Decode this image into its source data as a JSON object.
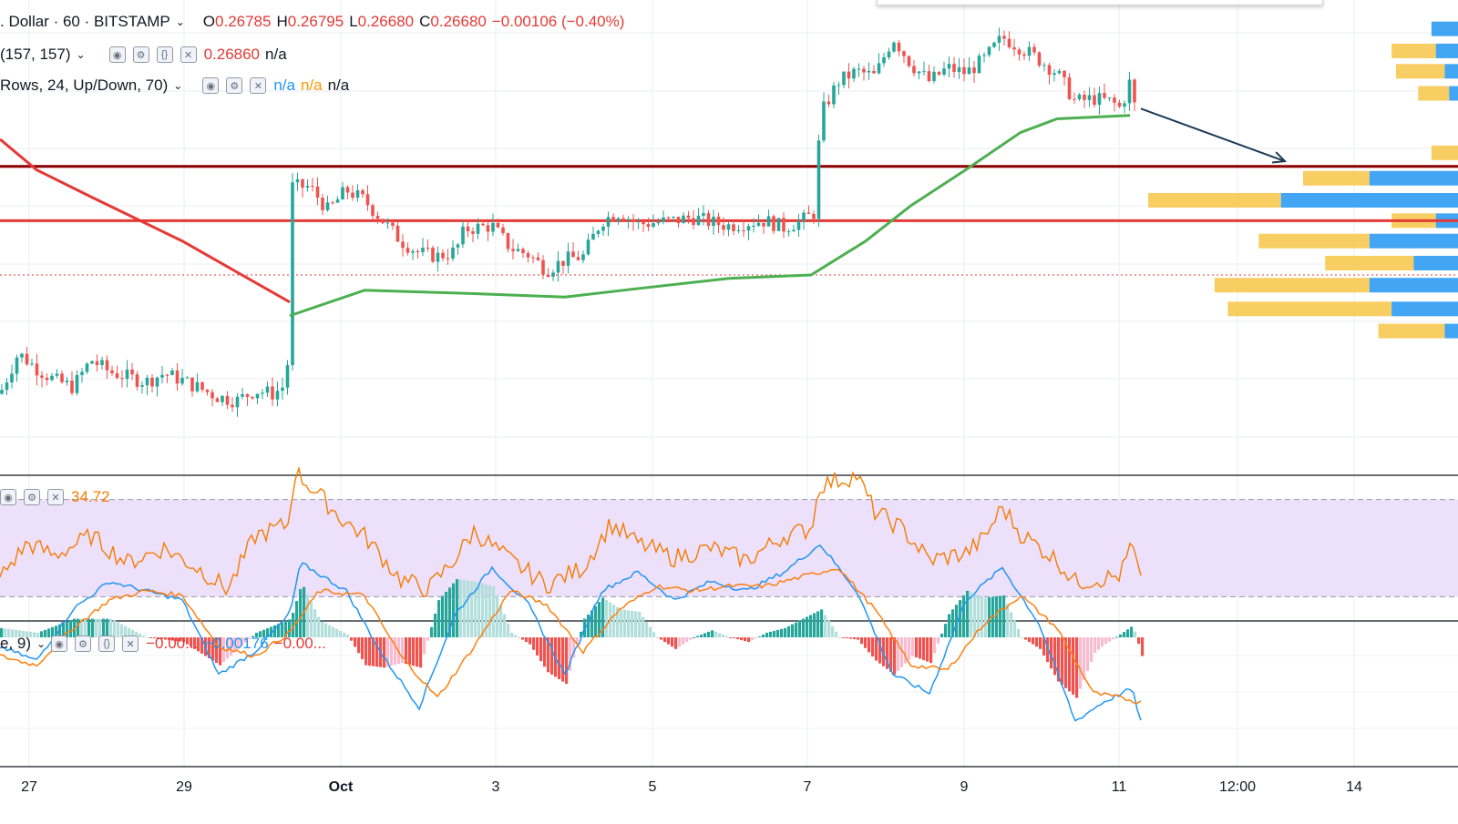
{
  "header": {
    "symbol_title": ". Dollar · 60 · BITSTAMP",
    "ohlc": [
      {
        "key": "O",
        "value": "0.26785"
      },
      {
        "key": "H",
        "value": "0.26795"
      },
      {
        "key": "L",
        "value": "0.26680"
      },
      {
        "key": "C",
        "value": "0.26680"
      }
    ],
    "change": "−0.00106 (−0.40%)"
  },
  "indicators": {
    "ma": {
      "params": "(157, 157)",
      "value": "0.26860",
      "extra": "n/a"
    },
    "volume_profile": {
      "params": "Rows, 24, Up/Down, 70)",
      "values": [
        "n/a",
        "n/a",
        "n/a"
      ]
    },
    "rsi": {
      "value": "34.72"
    },
    "macd": {
      "params": "e, 9)",
      "values": [
        "−0.00...",
        "−0.00176",
        "−0.00..."
      ]
    }
  },
  "colors": {
    "up": "#26a69a",
    "down": "#ef5350",
    "ma_green": "#4caf50",
    "ma_red": "#e53935",
    "resistance": "#8b0000",
    "support": "#e53935",
    "rsi_line": "#f57c00",
    "rsi_band": "#ede0fb",
    "macd_line": "#2196f3",
    "signal_line": "#ff7f0e",
    "vp_up": "#2196f3",
    "vp_down": "#f7c548",
    "arrow": "#1b3a57"
  },
  "chart_data": {
    "type": "candlestick",
    "x_axis_labels": [
      "27",
      "29",
      "Oct",
      "3",
      "5",
      "7",
      "9",
      "11",
      "12:00",
      "14"
    ],
    "y_range": [
      0.255,
      0.283
    ],
    "last_price": 0.2668,
    "horizontal_levels": [
      {
        "name": "resistance",
        "value": 0.2732,
        "color": "#8b0000"
      },
      {
        "name": "support",
        "value": 0.27,
        "color": "#e53935"
      },
      {
        "name": "last-price",
        "value": 0.2668,
        "color": "#e53935",
        "style": "dotted"
      }
    ],
    "price_path": [
      [
        0,
        0.2598
      ],
      [
        20,
        0.2622
      ],
      [
        40,
        0.2613
      ],
      [
        60,
        0.2606
      ],
      [
        80,
        0.2602
      ],
      [
        100,
        0.2618
      ],
      [
        120,
        0.2611
      ],
      [
        140,
        0.2608
      ],
      [
        160,
        0.2605
      ],
      [
        180,
        0.261
      ],
      [
        200,
        0.2606
      ],
      [
        220,
        0.2601
      ],
      [
        240,
        0.2596
      ],
      [
        260,
        0.2594
      ],
      [
        280,
        0.26
      ],
      [
        300,
        0.2598
      ],
      [
        315,
        0.2604
      ],
      [
        320,
        0.272
      ],
      [
        340,
        0.272
      ],
      [
        360,
        0.2706
      ],
      [
        380,
        0.2718
      ],
      [
        400,
        0.2712
      ],
      [
        420,
        0.27
      ],
      [
        440,
        0.2688
      ],
      [
        460,
        0.2681
      ],
      [
        480,
        0.2679
      ],
      [
        500,
        0.2682
      ],
      [
        510,
        0.2695
      ],
      [
        540,
        0.2697
      ],
      [
        560,
        0.2684
      ],
      [
        580,
        0.268
      ],
      [
        600,
        0.2671
      ],
      [
        620,
        0.2677
      ],
      [
        640,
        0.2679
      ],
      [
        660,
        0.27
      ],
      [
        680,
        0.2705
      ],
      [
        700,
        0.2698
      ],
      [
        720,
        0.2699
      ],
      [
        740,
        0.27
      ],
      [
        760,
        0.2702
      ],
      [
        780,
        0.2699
      ],
      [
        800,
        0.2697
      ],
      [
        820,
        0.2699
      ],
      [
        840,
        0.27
      ],
      [
        860,
        0.2696
      ],
      [
        880,
        0.27
      ],
      [
        895,
        0.2705
      ],
      [
        900,
        0.2762
      ],
      [
        920,
        0.2782
      ],
      [
        940,
        0.2788
      ],
      [
        960,
        0.2785
      ],
      [
        980,
        0.2808
      ],
      [
        1000,
        0.2792
      ],
      [
        1020,
        0.2782
      ],
      [
        1040,
        0.279
      ],
      [
        1060,
        0.2787
      ],
      [
        1080,
        0.2795
      ],
      [
        1100,
        0.2808
      ],
      [
        1120,
        0.2802
      ],
      [
        1140,
        0.2795
      ],
      [
        1160,
        0.2787
      ],
      [
        1180,
        0.277
      ],
      [
        1200,
        0.2772
      ],
      [
        1220,
        0.277
      ],
      [
        1230,
        0.2766
      ],
      [
        1240,
        0.2782
      ],
      [
        1245,
        0.2768
      ],
      [
        1252,
        0.2668
      ]
    ],
    "moving_average_green": [
      [
        318,
        0.2644
      ],
      [
        400,
        0.2659
      ],
      [
        520,
        0.2657
      ],
      [
        620,
        0.2655
      ],
      [
        700,
        0.266
      ],
      [
        800,
        0.2666
      ],
      [
        890,
        0.2668
      ],
      [
        950,
        0.2688
      ],
      [
        1000,
        0.2709
      ],
      [
        1060,
        0.273
      ],
      [
        1120,
        0.2752
      ],
      [
        1160,
        0.276
      ],
      [
        1240,
        0.2762
      ]
    ],
    "moving_average_red": [
      [
        0,
        0.2748
      ],
      [
        40,
        0.273
      ],
      [
        100,
        0.2714
      ],
      [
        200,
        0.2688
      ],
      [
        318,
        0.2652
      ]
    ],
    "projection_arrow": {
      "from": [
        1252,
        0.2766
      ],
      "to": [
        1410,
        0.2735
      ]
    },
    "volume_profile": [
      {
        "price": 0.2813,
        "up": 0.6,
        "down": 0.0
      },
      {
        "price": 0.28,
        "up": 0.5,
        "down": 1.0
      },
      {
        "price": 0.2788,
        "up": 0.3,
        "down": 1.1
      },
      {
        "price": 0.2775,
        "up": 0.2,
        "down": 0.7
      },
      {
        "price": 0.274,
        "up": 0.0,
        "down": 0.6
      },
      {
        "price": 0.2725,
        "up": 2.0,
        "down": 1.5
      },
      {
        "price": 0.2712,
        "up": 4.0,
        "down": 3.0
      },
      {
        "price": 0.27,
        "up": 0.5,
        "down": 1.0
      },
      {
        "price": 0.2688,
        "up": 2.0,
        "down": 2.5
      },
      {
        "price": 0.2675,
        "up": 1.0,
        "down": 2.0
      },
      {
        "price": 0.2662,
        "up": 2.0,
        "down": 3.5
      },
      {
        "price": 0.2648,
        "up": 1.5,
        "down": 3.7
      },
      {
        "price": 0.2635,
        "up": 0.3,
        "down": 1.5
      }
    ],
    "rsi": {
      "range": [
        20,
        80
      ],
      "band": [
        30,
        70
      ],
      "points": [
        [
          0,
          38
        ],
        [
          30,
          52
        ],
        [
          60,
          47
        ],
        [
          100,
          55
        ],
        [
          140,
          44
        ],
        [
          180,
          50
        ],
        [
          220,
          41
        ],
        [
          250,
          33
        ],
        [
          280,
          55
        ],
        [
          318,
          60
        ],
        [
          322,
          82
        ],
        [
          350,
          72
        ],
        [
          375,
          62
        ],
        [
          400,
          55
        ],
        [
          440,
          37
        ],
        [
          470,
          33
        ],
        [
          500,
          46
        ],
        [
          520,
          57
        ],
        [
          560,
          45
        ],
        [
          600,
          35
        ],
        [
          640,
          42
        ],
        [
          670,
          60
        ],
        [
          700,
          52
        ],
        [
          740,
          46
        ],
        [
          780,
          50
        ],
        [
          820,
          45
        ],
        [
          860,
          55
        ],
        [
          890,
          58
        ],
        [
          900,
          76
        ],
        [
          940,
          80
        ],
        [
          960,
          65
        ],
        [
          990,
          58
        ],
        [
          1020,
          45
        ],
        [
          1060,
          48
        ],
        [
          1080,
          54
        ],
        [
          1100,
          67
        ],
        [
          1120,
          56
        ],
        [
          1160,
          45
        ],
        [
          1180,
          36
        ],
        [
          1220,
          38
        ],
        [
          1230,
          39
        ],
        [
          1242,
          52
        ],
        [
          1252,
          35
        ]
      ]
    },
    "macd": {
      "macd_line": [
        [
          0,
          -0.0002
        ],
        [
          40,
          -0.0005
        ],
        [
          80,
          0.0006
        ],
        [
          120,
          0.0012
        ],
        [
          160,
          0.001
        ],
        [
          200,
          0.0008
        ],
        [
          240,
          -0.0008
        ],
        [
          280,
          -0.0003
        ],
        [
          318,
          0.0005
        ],
        [
          330,
          0.0016
        ],
        [
          380,
          0.001
        ],
        [
          420,
          -0.0004
        ],
        [
          460,
          -0.0015
        ],
        [
          500,
          0.0005
        ],
        [
          540,
          0.0015
        ],
        [
          580,
          0.0007
        ],
        [
          620,
          -0.0008
        ],
        [
          660,
          0.001
        ],
        [
          700,
          0.0014
        ],
        [
          740,
          0.0008
        ],
        [
          780,
          0.0012
        ],
        [
          820,
          0.001
        ],
        [
          860,
          0.0014
        ],
        [
          900,
          0.002
        ],
        [
          940,
          0.001
        ],
        [
          980,
          -0.0008
        ],
        [
          1020,
          -0.0012
        ],
        [
          1060,
          0.0008
        ],
        [
          1100,
          0.0015
        ],
        [
          1140,
          0.0003
        ],
        [
          1180,
          -0.0018
        ],
        [
          1210,
          -0.0014
        ],
        [
          1242,
          -0.0011
        ],
        [
          1252,
          -0.0018
        ]
      ],
      "signal_line": [
        [
          0,
          -0.0004
        ],
        [
          40,
          -0.0006
        ],
        [
          80,
          0.0002
        ],
        [
          120,
          0.0008
        ],
        [
          160,
          0.001
        ],
        [
          200,
          0.0009
        ],
        [
          240,
          -0.0002
        ],
        [
          280,
          -0.0004
        ],
        [
          318,
          0.0001
        ],
        [
          350,
          0.001
        ],
        [
          400,
          0.0009
        ],
        [
          440,
          -0.0004
        ],
        [
          480,
          -0.0013
        ],
        [
          520,
          -0.0002
        ],
        [
          560,
          0.001
        ],
        [
          600,
          0.0007
        ],
        [
          640,
          -0.0003
        ],
        [
          680,
          0.0006
        ],
        [
          720,
          0.0011
        ],
        [
          760,
          0.001
        ],
        [
          800,
          0.0011
        ],
        [
          840,
          0.0011
        ],
        [
          880,
          0.0013
        ],
        [
          920,
          0.0015
        ],
        [
          960,
          0.0006
        ],
        [
          1000,
          -0.0006
        ],
        [
          1040,
          -0.0007
        ],
        [
          1080,
          0.0003
        ],
        [
          1120,
          0.0009
        ],
        [
          1160,
          0.0002
        ],
        [
          1200,
          -0.0012
        ],
        [
          1230,
          -0.0013
        ],
        [
          1252,
          -0.0014
        ]
      ],
      "range": [
        -0.0025,
        0.0025
      ]
    }
  }
}
